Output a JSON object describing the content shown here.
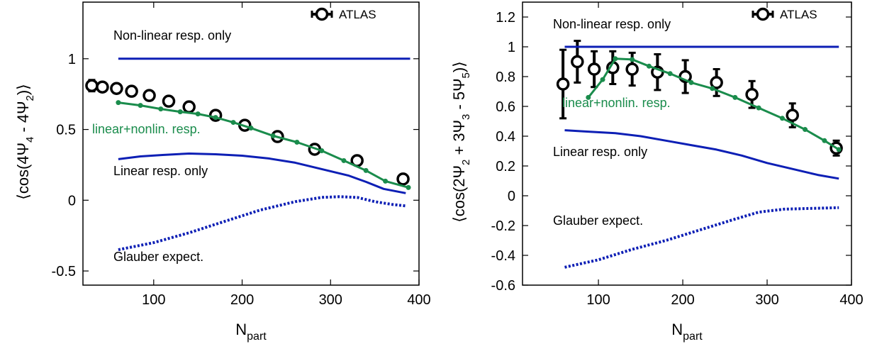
{
  "chart_data": [
    {
      "type": "line",
      "ylabel": "⟨cos(4Ψ4 - 4Ψ2)⟩",
      "xlabel": "Npart",
      "xlim": [
        20,
        400
      ],
      "ylim": [
        -0.6,
        1.4
      ],
      "xticks": [
        100,
        200,
        300,
        400
      ],
      "yticks": [
        -0.5,
        0,
        0.5,
        1
      ],
      "ytick_labels": [
        "-0.5",
        "0",
        "0.5",
        "1"
      ],
      "legend": {
        "label": "ATLAS",
        "position": "top-right"
      },
      "annotations": [
        {
          "text": "Non-linear resp. only",
          "color": "#000000"
        },
        {
          "text": "linear+nonlin. resp.",
          "color": "#1a8c4c"
        },
        {
          "text": "Linear resp. only",
          "color": "#000000"
        },
        {
          "text": "Glauber expect.",
          "color": "#000000"
        }
      ],
      "series": [
        {
          "name": "ATLAS",
          "kind": "points",
          "color": "#000000",
          "x": [
            30,
            42,
            58,
            75,
            95,
            117,
            140,
            170,
            203,
            240,
            282,
            330,
            382
          ],
          "y": [
            0.81,
            0.8,
            0.79,
            0.77,
            0.74,
            0.7,
            0.66,
            0.6,
            0.53,
            0.45,
            0.36,
            0.28,
            0.15
          ],
          "err": [
            0.04,
            0.03,
            0.03,
            0.03,
            0.03,
            0.02,
            0.02,
            0.02,
            0.02,
            0.02,
            0.02,
            0.03,
            0.03
          ]
        },
        {
          "name": "Non-linear resp. only",
          "kind": "line",
          "color": "#0d1fb5",
          "x": [
            60,
            390
          ],
          "y": [
            1.0,
            1.0
          ]
        },
        {
          "name": "linear+nonlin. resp.",
          "kind": "line_markers",
          "color": "#1a8c4c",
          "x": [
            60,
            85,
            108,
            130,
            150,
            170,
            190,
            210,
            235,
            262,
            290,
            315,
            340,
            362,
            388
          ],
          "y": [
            0.69,
            0.67,
            0.645,
            0.625,
            0.61,
            0.585,
            0.55,
            0.51,
            0.455,
            0.41,
            0.35,
            0.28,
            0.21,
            0.135,
            0.09
          ]
        },
        {
          "name": "Linear resp. only",
          "kind": "line",
          "color": "#0d1fb5",
          "x": [
            60,
            85,
            110,
            140,
            170,
            200,
            230,
            260,
            290,
            320,
            340,
            360,
            385
          ],
          "y": [
            0.29,
            0.31,
            0.32,
            0.33,
            0.325,
            0.315,
            0.295,
            0.265,
            0.22,
            0.175,
            0.13,
            0.08,
            0.05
          ]
        },
        {
          "name": "Glauber expect.",
          "kind": "dotted",
          "color": "#0d1fb5",
          "x": [
            60,
            100,
            140,
            180,
            220,
            260,
            290,
            310,
            330,
            350,
            370,
            385
          ],
          "y": [
            -0.35,
            -0.3,
            -0.23,
            -0.15,
            -0.07,
            -0.01,
            0.02,
            0.025,
            0.02,
            -0.01,
            -0.03,
            -0.04
          ]
        }
      ]
    },
    {
      "type": "line",
      "ylabel": "⟨cos(2Ψ2 + 3Ψ3 - 5Ψ5)⟩",
      "xlabel": "Npart",
      "xlim": [
        10,
        400
      ],
      "ylim": [
        -0.6,
        1.3
      ],
      "xticks": [
        100,
        200,
        300,
        400
      ],
      "yticks": [
        -0.6,
        -0.4,
        -0.2,
        0,
        0.2,
        0.4,
        0.6,
        0.8,
        1,
        1.2
      ],
      "ytick_labels": [
        "-0.6",
        "-0.4",
        "-0.2",
        "0",
        "0.2",
        "0.4",
        "0.6",
        "0.8",
        "1",
        "1.2"
      ],
      "legend": {
        "label": "ATLAS",
        "position": "top-right"
      },
      "annotations": [
        {
          "text": "Non-linear resp. only",
          "color": "#000000"
        },
        {
          "text": "linear+nonlin. resp.",
          "color": "#1a8c4c"
        },
        {
          "text": "Linear resp. only",
          "color": "#000000"
        },
        {
          "text": "Glauber expect.",
          "color": "#000000"
        }
      ],
      "series": [
        {
          "name": "ATLAS",
          "kind": "points",
          "color": "#000000",
          "x": [
            58,
            75,
            95,
            117,
            140,
            170,
            203,
            240,
            282,
            330,
            382
          ],
          "y": [
            0.75,
            0.9,
            0.85,
            0.86,
            0.85,
            0.83,
            0.8,
            0.76,
            0.68,
            0.54,
            0.32
          ],
          "err": [
            0.23,
            0.14,
            0.12,
            0.11,
            0.11,
            0.12,
            0.11,
            0.09,
            0.09,
            0.08,
            0.05
          ]
        },
        {
          "name": "Non-linear resp. only",
          "kind": "line",
          "color": "#0d1fb5",
          "x": [
            60,
            385
          ],
          "y": [
            1.0,
            1.0
          ]
        },
        {
          "name": "linear+nonlin. resp.",
          "kind": "line_markers",
          "color": "#1a8c4c",
          "x": [
            88,
            105,
            120,
            140,
            160,
            185,
            210,
            235,
            262,
            290,
            318,
            345,
            368,
            385
          ],
          "y": [
            0.66,
            0.78,
            0.92,
            0.915,
            0.87,
            0.82,
            0.76,
            0.72,
            0.66,
            0.59,
            0.52,
            0.445,
            0.37,
            0.31
          ]
        },
        {
          "name": "Linear resp. only",
          "kind": "line",
          "color": "#0d1fb5",
          "x": [
            60,
            90,
            120,
            150,
            180,
            210,
            240,
            270,
            300,
            330,
            360,
            385
          ],
          "y": [
            0.44,
            0.43,
            0.42,
            0.4,
            0.37,
            0.34,
            0.31,
            0.27,
            0.22,
            0.18,
            0.14,
            0.115
          ]
        },
        {
          "name": "Glauber expect.",
          "kind": "dotted",
          "color": "#0d1fb5",
          "x": [
            60,
            100,
            140,
            180,
            220,
            260,
            290,
            320,
            350,
            385
          ],
          "y": [
            -0.48,
            -0.43,
            -0.36,
            -0.3,
            -0.23,
            -0.16,
            -0.11,
            -0.09,
            -0.085,
            -0.08
          ]
        }
      ]
    }
  ]
}
